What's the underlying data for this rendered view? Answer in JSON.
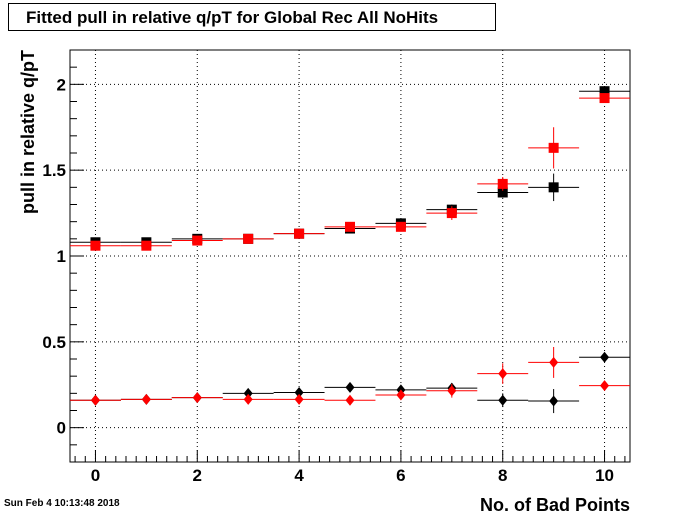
{
  "title": "Fitted pull in relative q/pT for Global Rec All NoHits",
  "timestamp": "Sun Feb  4 10:13:48 2018",
  "chart_data": {
    "type": "scatter",
    "title": "Fitted pull in relative q/pT for Global Rec All NoHits",
    "xlabel": "No. of Bad Points",
    "ylabel": "pull in relative q/pT",
    "xlim": [
      -0.5,
      10.5
    ],
    "ylim": [
      -0.2,
      2.2
    ],
    "x_ticks": [
      "0",
      "2",
      "4",
      "6",
      "8",
      "10"
    ],
    "y_ticks": [
      "0",
      "0.5",
      "1",
      "1.5",
      "2"
    ],
    "grid": true,
    "x_error": 0.5,
    "colors": {
      "black": "#000000",
      "red": "#ff0000"
    },
    "series": [
      {
        "marker": "square",
        "color": "#000000",
        "x": [
          0,
          1,
          2,
          3,
          4,
          5,
          6,
          7,
          8,
          9,
          10
        ],
        "y": [
          1.08,
          1.08,
          1.1,
          1.1,
          1.13,
          1.16,
          1.19,
          1.27,
          1.37,
          1.4,
          1.96
        ],
        "yerr": [
          0.01,
          0.01,
          0.01,
          0.01,
          0.01,
          0.01,
          0.02,
          0.03,
          0.03,
          0.08,
          0.02
        ]
      },
      {
        "marker": "square",
        "color": "#ff0000",
        "x": [
          0,
          1,
          2,
          3,
          4,
          5,
          6,
          7,
          8,
          9,
          10
        ],
        "y": [
          1.06,
          1.06,
          1.09,
          1.1,
          1.13,
          1.17,
          1.17,
          1.25,
          1.42,
          1.63,
          1.92
        ],
        "yerr": [
          0.01,
          0.01,
          0.01,
          0.01,
          0.01,
          0.01,
          0.02,
          0.04,
          0.04,
          0.12,
          0.02
        ]
      },
      {
        "marker": "diamond",
        "color": "#000000",
        "x": [
          0,
          1,
          2,
          3,
          4,
          5,
          6,
          7,
          8,
          9,
          10
        ],
        "y": [
          0.16,
          0.165,
          0.175,
          0.2,
          0.205,
          0.235,
          0.22,
          0.23,
          0.16,
          0.155,
          0.41
        ],
        "yerr": [
          0.005,
          0.005,
          0.005,
          0.005,
          0.005,
          0.01,
          0.01,
          0.03,
          0.04,
          0.07,
          0.01
        ]
      },
      {
        "marker": "diamond",
        "color": "#ff0000",
        "x": [
          0,
          1,
          2,
          3,
          4,
          5,
          6,
          7,
          8,
          9,
          10
        ],
        "y": [
          0.16,
          0.165,
          0.175,
          0.165,
          0.165,
          0.16,
          0.19,
          0.215,
          0.315,
          0.38,
          0.245
        ],
        "yerr": [
          0.005,
          0.005,
          0.005,
          0.005,
          0.005,
          0.01,
          0.01,
          0.04,
          0.06,
          0.09,
          0.01
        ]
      }
    ]
  }
}
